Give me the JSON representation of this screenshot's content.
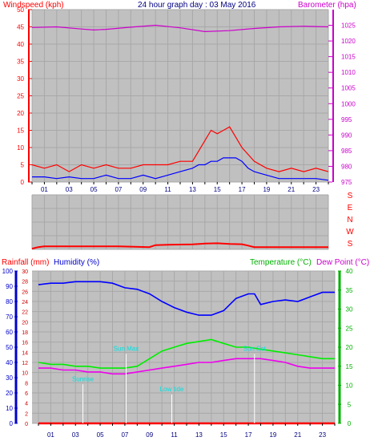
{
  "chart_data": [
    {
      "type": "line",
      "title": "24 hour graph day : 03 May 2016",
      "y_left_label": "Windspeed (kph)",
      "y_right_label": "Barometer (hpa)",
      "x_ticks": [
        "01",
        "03",
        "05",
        "07",
        "09",
        "11",
        "13",
        "15",
        "17",
        "19",
        "21",
        "23"
      ],
      "xlim": [
        0,
        24
      ],
      "ylim_left": [
        0,
        50
      ],
      "ylim_right": [
        975,
        1030
      ],
      "y_left_ticks": [
        "0",
        "5",
        "10",
        "15",
        "20",
        "25",
        "30",
        "35",
        "40",
        "45",
        "50"
      ],
      "y_right_ticks": [
        "975",
        "980",
        "985",
        "990",
        "995",
        "1000",
        "1005",
        "1010",
        "1015",
        "1020",
        "1025"
      ],
      "colors": {
        "gust": "#ff0000",
        "avg": "#0000ff",
        "baro": "#cc00cc"
      },
      "series": [
        {
          "key": "gust",
          "x": [
            0,
            1,
            2,
            3,
            4,
            5,
            6,
            7,
            8,
            9,
            10,
            11,
            12,
            13,
            13.5,
            14,
            14.5,
            15,
            15.5,
            16,
            16.5,
            17,
            17.5,
            18,
            19,
            20,
            21,
            22,
            23,
            24
          ],
          "values": [
            5,
            4,
            5,
            3,
            5,
            4,
            5,
            4,
            4,
            5,
            5,
            5,
            6,
            6,
            9,
            12,
            15,
            14,
            15,
            16,
            13,
            10,
            8,
            6,
            4,
            3,
            4,
            3,
            4,
            3
          ]
        },
        {
          "key": "avg",
          "x": [
            0,
            1,
            2,
            3,
            4,
            5,
            6,
            7,
            8,
            9,
            10,
            11,
            12,
            13,
            13.5,
            14,
            14.5,
            15,
            15.5,
            16,
            16.5,
            17,
            17.5,
            18,
            19,
            20,
            21,
            22,
            23,
            24
          ],
          "values": [
            1.5,
            1.5,
            1,
            1.5,
            1,
            1,
            2,
            1,
            1,
            2,
            1,
            2,
            3,
            4,
            5,
            5,
            6,
            6,
            7,
            7,
            7,
            6,
            4,
            3,
            2,
            1,
            1,
            1,
            1,
            0.5
          ]
        },
        {
          "key": "baro",
          "x": [
            0,
            2,
            4,
            5,
            6,
            8,
            10,
            12,
            14,
            16,
            18,
            20,
            22,
            24
          ],
          "values": [
            1024.3,
            1024.5,
            1023.8,
            1023.5,
            1023.7,
            1024.4,
            1025,
            1024.2,
            1023,
            1023.3,
            1024,
            1024.5,
            1024.7,
            1024.5
          ]
        }
      ]
    },
    {
      "type": "line",
      "title": "",
      "y_right_labels": [
        "S",
        "E",
        "N",
        "W",
        "S"
      ],
      "xlim": [
        0,
        24
      ],
      "direction_values": [
        180,
        90,
        0,
        270,
        180
      ],
      "colors": {
        "dir": "#ff0000"
      },
      "series": [
        {
          "key": "dir",
          "x": [
            0,
            0.5,
            1,
            4,
            7,
            8,
            9.5,
            10,
            11,
            12,
            13,
            14,
            15,
            16,
            17,
            17.5,
            18,
            19,
            20,
            21,
            22,
            23,
            24
          ],
          "values": [
            185,
            195,
            200,
            200,
            200,
            198,
            195,
            208,
            210,
            212,
            213,
            218,
            220,
            216,
            214,
            205,
            195,
            195,
            195,
            195,
            195,
            195,
            195
          ]
        }
      ]
    },
    {
      "type": "line",
      "title": "",
      "rain_label": "Rainfall (mm)",
      "humidity_label": "Humidity (%)",
      "temperature_label": "Temperature (°C)",
      "dewpoint_label": "Dew Point (°C)",
      "xlim": [
        0,
        24
      ],
      "humidity_ylim": [
        0,
        100
      ],
      "rain_ylim": [
        0,
        30
      ],
      "temp_ylim": [
        0,
        40
      ],
      "humidity_ticks": [
        "0",
        "10",
        "20",
        "30",
        "40",
        "50",
        "60",
        "70",
        "80",
        "90",
        "100"
      ],
      "rain_ticks": [
        "0",
        "2",
        "4",
        "6",
        "8",
        "10",
        "12",
        "14",
        "16",
        "18",
        "20",
        "22",
        "24",
        "26",
        "28",
        "30"
      ],
      "temp_ticks": [
        "0",
        "5",
        "10",
        "15",
        "20",
        "25",
        "30",
        "35",
        "40"
      ],
      "x_ticks": [
        "01",
        "03",
        "05",
        "07",
        "09",
        "11",
        "13",
        "15",
        "17",
        "19",
        "21",
        "23"
      ],
      "colors": {
        "humidity": "#0000ff",
        "temperature": "#00ee00",
        "dewpoint": "#ee00ee",
        "rain": "#ff0000"
      },
      "series": [
        {
          "key": "humidity",
          "x": [
            0,
            1,
            2,
            3,
            4,
            5,
            6,
            7,
            8,
            9,
            10,
            11,
            12,
            13,
            14,
            15,
            16,
            17,
            17.5,
            18,
            19,
            20,
            21,
            22,
            23,
            24
          ],
          "values": [
            91,
            92,
            92,
            93,
            93,
            93,
            92,
            89,
            88,
            85,
            80,
            76,
            73,
            71,
            71,
            74,
            82,
            85,
            85,
            78,
            80,
            81,
            80,
            83,
            86,
            86
          ]
        },
        {
          "key": "temperature",
          "x": [
            0,
            1,
            2,
            3,
            4,
            5,
            6,
            7,
            8,
            9,
            10,
            11,
            12,
            13,
            14,
            15,
            16,
            17,
            18,
            19,
            20,
            21,
            22,
            23,
            24
          ],
          "values": [
            16,
            15.5,
            15.5,
            15,
            15,
            14.5,
            14.5,
            14.5,
            15,
            17,
            19,
            20,
            21,
            21.5,
            22,
            21,
            20,
            20,
            19.5,
            19,
            18.5,
            18,
            17.5,
            17,
            17
          ]
        },
        {
          "key": "dewpoint",
          "x": [
            0,
            1,
            2,
            3,
            4,
            5,
            6,
            7,
            8,
            9,
            10,
            11,
            12,
            13,
            14,
            15,
            16,
            17,
            18,
            19,
            20,
            21,
            22,
            23,
            24
          ],
          "values": [
            14.5,
            14.5,
            14,
            14,
            13.5,
            13.5,
            13,
            13,
            13.5,
            14,
            14.5,
            15,
            15.5,
            16,
            16,
            16.5,
            17,
            17,
            17,
            16.5,
            16,
            15,
            14.5,
            14.5,
            14.5
          ]
        },
        {
          "key": "rain",
          "x": [
            0,
            24
          ],
          "values": [
            0,
            0
          ]
        }
      ],
      "annotations": [
        {
          "label": "Sunrise",
          "x": 3.6,
          "level": 8
        },
        {
          "label": "Sun Max",
          "x": 7.1,
          "level": 14
        },
        {
          "label": "Low tide",
          "x": 10.8,
          "level": 6
        },
        {
          "label": "Sun Set",
          "x": 17.5,
          "level": 14
        }
      ]
    }
  ]
}
